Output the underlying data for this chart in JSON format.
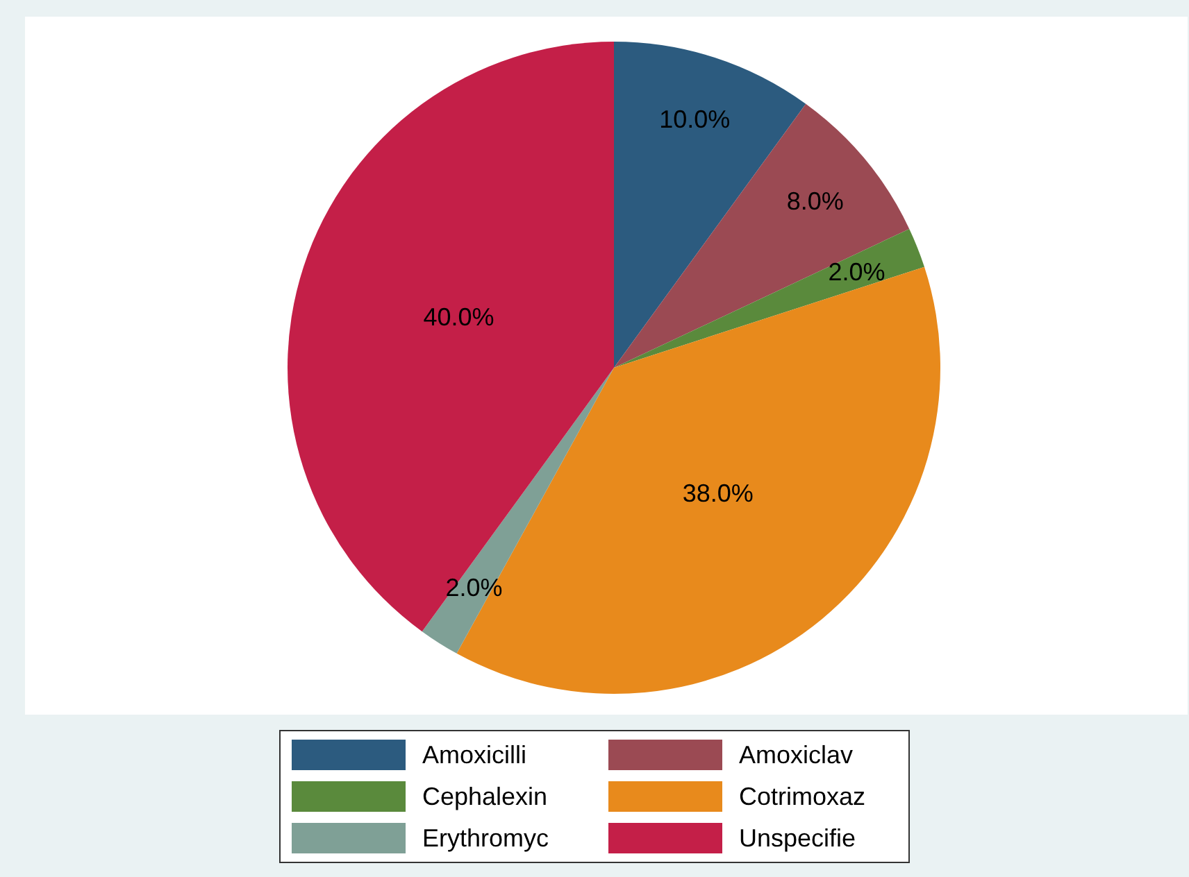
{
  "chart_data": {
    "type": "pie",
    "categories": [
      "Amoxicilli",
      "Amoxiclav",
      "Cephalexin",
      "Cotrimoxaz",
      "Erythromyc",
      "Unspecifie"
    ],
    "values": [
      10,
      8,
      2,
      38,
      2,
      40
    ],
    "value_labels": [
      "10.0%",
      "8.0%",
      "2.0%",
      "38.0%",
      "2.0%",
      "40.0%"
    ],
    "colors": [
      "#2c5b7f",
      "#9b4a53",
      "#5a8a3c",
      "#e88a1c",
      "#7fa096",
      "#c41f48"
    ],
    "legend": "bottom"
  }
}
